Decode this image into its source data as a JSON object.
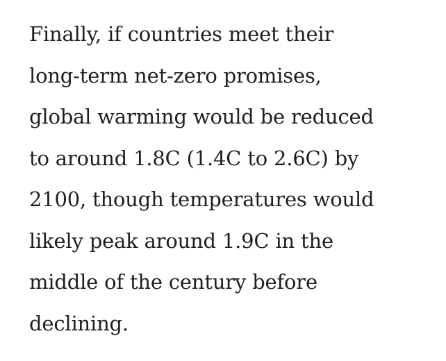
{
  "article": {
    "paragraph": {
      "lines": [
        "Finally, if countries meet their",
        "long-term net-zero promises,",
        "global warming would be reduced",
        "to around 1.8C (1.4C to 2.6C) by",
        "2100, though temperatures would",
        "likely peak around 1.9C in the",
        "middle of the century before",
        "declining."
      ]
    }
  },
  "colors": {
    "text": "#1f1f1f",
    "background": "#ffffff"
  }
}
